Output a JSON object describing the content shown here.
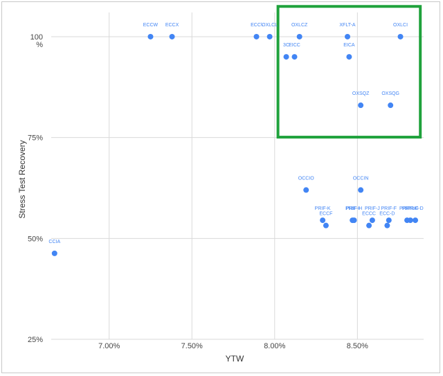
{
  "chart_data": {
    "type": "scatter",
    "xlabel": "YTW",
    "ylabel": "Stress Test Recovery",
    "xlim": [
      6.65,
      8.9
    ],
    "ylim": [
      25,
      106
    ],
    "x_ticks": [
      {
        "value": 7.0,
        "label": "7.00%"
      },
      {
        "value": 7.5,
        "label": "7.50%"
      },
      {
        "value": 8.0,
        "label": "8.00%"
      },
      {
        "value": 8.5,
        "label": "8.50%"
      }
    ],
    "y_ticks": [
      {
        "value": 25,
        "label": "25%"
      },
      {
        "value": 50,
        "label": "50%"
      },
      {
        "value": 75,
        "label": "75%"
      },
      {
        "value": 100,
        "label": "100\n%"
      }
    ],
    "grid": true,
    "point_color": "#4285f4",
    "highlight": {
      "x_range": [
        8.02,
        8.88
      ],
      "y_range": [
        75.1,
        107.5
      ],
      "color": "#1fa23c"
    },
    "points": [
      {
        "label": "CCIA",
        "x": 6.67,
        "y": 46.3
      },
      {
        "label": "ECCW",
        "x": 7.25,
        "y": 100
      },
      {
        "label": "ECCX",
        "x": 7.38,
        "y": 100
      },
      {
        "label": "ECC\\",
        "x": 7.89,
        "y": 100
      },
      {
        "label": "OXLCL",
        "x": 7.97,
        "y": 100
      },
      {
        "label": "OXLCZ",
        "x": 8.15,
        "y": 100
      },
      {
        "label": "XFLT-A",
        "x": 8.44,
        "y": 100
      },
      {
        "label": "OXLCI",
        "x": 8.76,
        "y": 100
      },
      {
        "label": "3C",
        "x": 8.07,
        "y": 95
      },
      {
        "label": "EICC",
        "x": 8.12,
        "y": 95
      },
      {
        "label": "EICA",
        "x": 8.45,
        "y": 95
      },
      {
        "label": "OXSQZ",
        "x": 8.52,
        "y": 83
      },
      {
        "label": "OXSQG",
        "x": 8.7,
        "y": 83
      },
      {
        "label": "OCCIO",
        "x": 8.19,
        "y": 62
      },
      {
        "label": "OCCIN",
        "x": 8.52,
        "y": 62
      },
      {
        "label": "PRIF-K",
        "x": 8.29,
        "y": 54.5
      },
      {
        "label": "ECCF",
        "x": 8.31,
        "y": 53.2
      },
      {
        "label": "PRIF-I",
        "x": 8.47,
        "y": 54.5
      },
      {
        "label": "PRIF-H",
        "x": 8.48,
        "y": 54.5
      },
      {
        "label": "ECCC",
        "x": 8.57,
        "y": 53.2
      },
      {
        "label": "PRIF-J",
        "x": 8.59,
        "y": 54.5
      },
      {
        "label": "ECC-D",
        "x": 8.68,
        "y": 53.2
      },
      {
        "label": "PRIF-F",
        "x": 8.69,
        "y": 54.5
      },
      {
        "label": "PRIF-L",
        "x": 8.8,
        "y": 54.5
      },
      {
        "label": "PRIF-G",
        "x": 8.82,
        "y": 54.5
      },
      {
        "label": "PRIF-D",
        "x": 8.85,
        "y": 54.5
      }
    ]
  }
}
